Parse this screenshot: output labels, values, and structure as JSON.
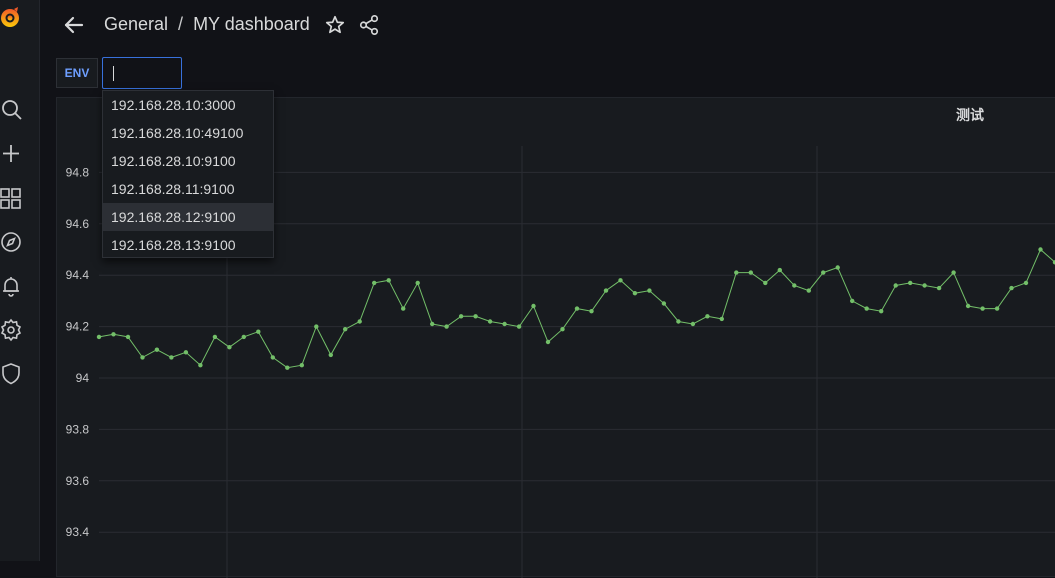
{
  "header": {
    "folder": "General",
    "separator": "/",
    "dashboard_title": "MY dashboard"
  },
  "variables": {
    "env_label": "ENV",
    "env_input_value": ""
  },
  "dropdown": {
    "options": [
      "192.168.28.10:3000",
      "192.168.28.10:49100",
      "192.168.28.10:9100",
      "192.168.28.11:9100",
      "192.168.28.12:9100",
      "192.168.28.13:9100"
    ],
    "highlighted_index": 4
  },
  "sidebar": {
    "icons": [
      "grafana-logo-icon",
      "search-icon",
      "plus-icon",
      "dashboards-grid-icon",
      "explore-compass-icon",
      "alert-bell-icon",
      "settings-gear-icon",
      "shield-icon"
    ]
  },
  "panel": {
    "title": "测试"
  },
  "colors": {
    "background": "#111217",
    "panel": "#181b1f",
    "series": "#73bf69",
    "accent": "#3871dc",
    "label_blue": "#6e9fff"
  },
  "chart_data": {
    "type": "line",
    "title": "测试",
    "ylim": [
      93.3,
      95.0
    ],
    "yticks": [
      93.4,
      93.6,
      93.8,
      94,
      94.2,
      94.4,
      94.6,
      94.8
    ],
    "ytick_labels": [
      "93.4",
      "93.6",
      "93.8",
      "94",
      "94.2",
      "94.4",
      "94.6",
      "94.8"
    ],
    "grid": true,
    "legend": "none",
    "series": [
      {
        "values": [
          94.16,
          94.17,
          94.16,
          94.08,
          94.11,
          94.08,
          94.1,
          94.05,
          94.16,
          94.12,
          94.16,
          94.18,
          94.08,
          94.04,
          94.05,
          94.2,
          94.09,
          94.19,
          94.22,
          94.37,
          94.38,
          94.27,
          94.37,
          94.21,
          94.2,
          94.24,
          94.24,
          94.22,
          94.21,
          94.2,
          94.28,
          94.14,
          94.19,
          94.27,
          94.26,
          94.34,
          94.38,
          94.33,
          94.34,
          94.29,
          94.22,
          94.21,
          94.24,
          94.23,
          94.41,
          94.41,
          94.37,
          94.42,
          94.36,
          94.34,
          94.41,
          94.43,
          94.3,
          94.27,
          94.26,
          94.36,
          94.37,
          94.36,
          94.35,
          94.41,
          94.28,
          94.27,
          94.27,
          94.35,
          94.37,
          94.5,
          94.45
        ]
      }
    ]
  }
}
